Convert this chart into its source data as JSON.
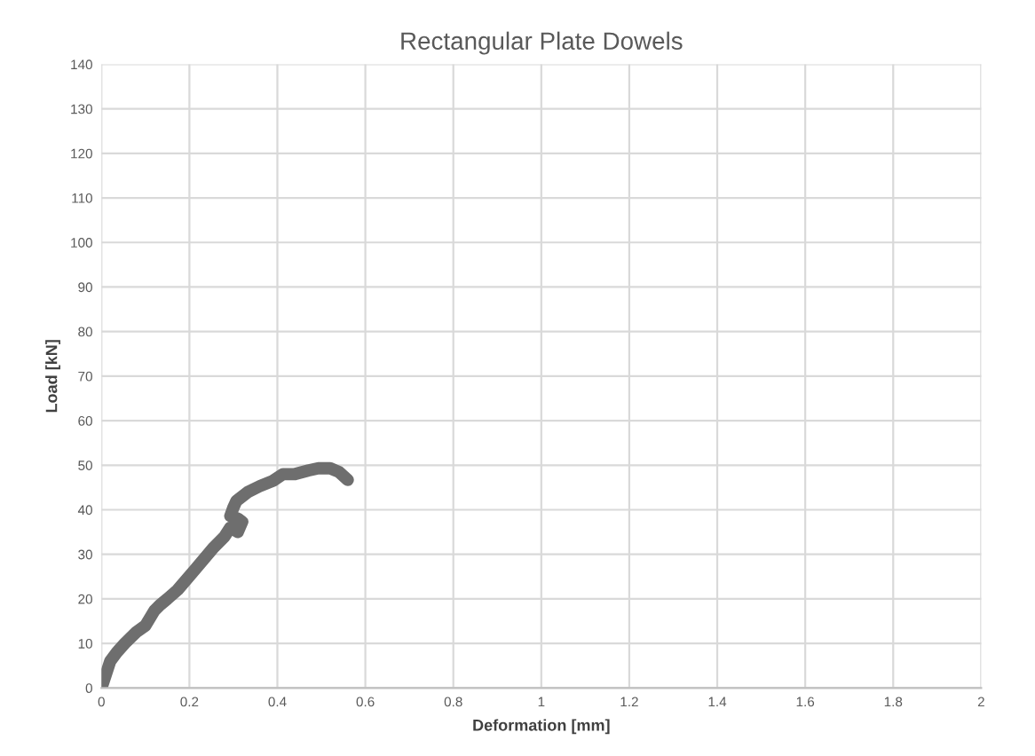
{
  "chart_data": {
    "type": "line",
    "title": "Rectangular Plate Dowels",
    "xlabel": "Deformation [mm]",
    "ylabel": "Load [kN]",
    "series": [
      {
        "color": "#6e6e6e",
        "x": [
          0,
          0.01,
          0.02,
          0.035,
          0.053,
          0.08,
          0.1,
          0.12,
          0.133,
          0.15,
          0.173,
          0.213,
          0.253,
          0.28,
          0.293,
          0.31,
          0.32,
          0.31,
          0.293,
          0.3,
          0.307,
          0.333,
          0.36,
          0.39,
          0.413,
          0.44,
          0.47,
          0.493,
          0.52,
          0.54,
          0.56
        ],
        "values": [
          0,
          3,
          6,
          8,
          10,
          12.6,
          14,
          17.3,
          18.6,
          20,
          22,
          26.6,
          31.3,
          34,
          36,
          35,
          37.3,
          38,
          38.6,
          40.5,
          42,
          44,
          45.3,
          46.5,
          48,
          48,
          48.8,
          49.3,
          49.3,
          48.5,
          46.7
        ]
      }
    ],
    "xlim": [
      0,
      2
    ],
    "ylim": [
      0,
      140
    ],
    "xticks": [
      0,
      0.2,
      0.4,
      0.6,
      0.8,
      1,
      1.2,
      1.4,
      1.6,
      1.8,
      2
    ],
    "yticks": [
      0,
      10,
      20,
      30,
      40,
      50,
      60,
      70,
      80,
      90,
      100,
      110,
      120,
      130,
      140
    ],
    "grid": true,
    "line_style": "solid"
  }
}
